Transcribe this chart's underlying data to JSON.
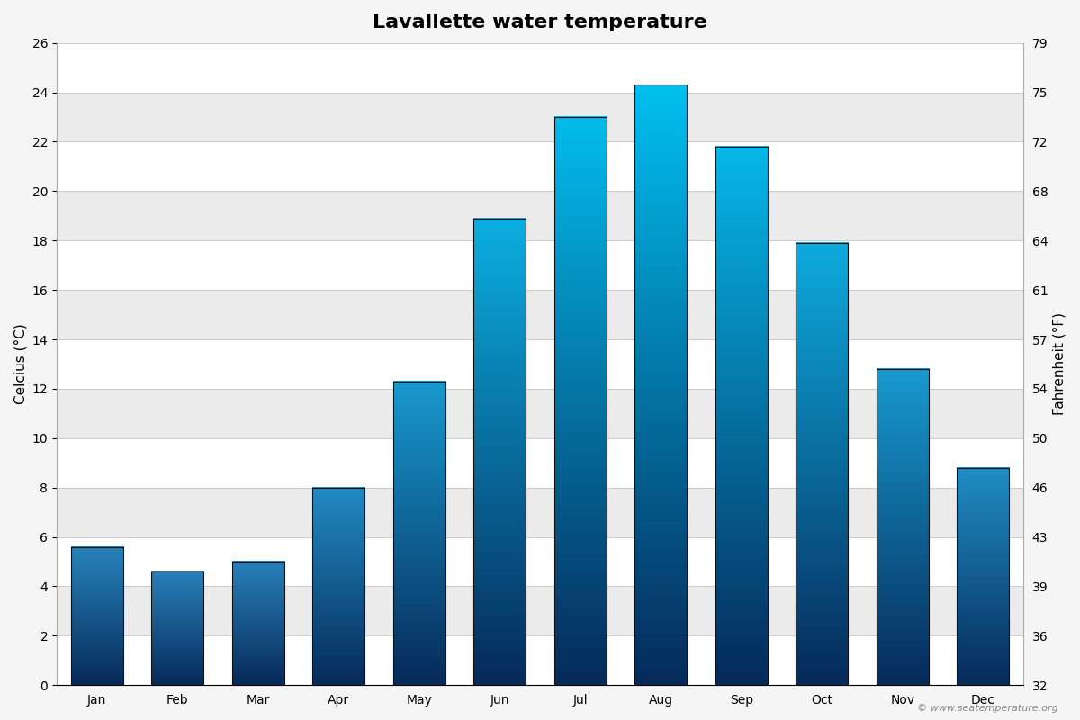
{
  "title": "Lavallette water temperature",
  "months": [
    "Jan",
    "Feb",
    "Mar",
    "Apr",
    "May",
    "Jun",
    "Jul",
    "Aug",
    "Sep",
    "Oct",
    "Nov",
    "Dec"
  ],
  "values_c": [
    5.6,
    4.6,
    5.0,
    8.0,
    12.3,
    18.9,
    23.0,
    24.3,
    21.8,
    17.9,
    12.8,
    8.8
  ],
  "ylabel_left": "Celcius (°C)",
  "ylabel_right": "Fahrenheit (°F)",
  "ylim_left": [
    0,
    26
  ],
  "yticks_left": [
    0,
    2,
    4,
    6,
    8,
    10,
    12,
    14,
    16,
    18,
    20,
    22,
    24,
    26
  ],
  "yticks_right": [
    32,
    36,
    39,
    43,
    46,
    50,
    54,
    57,
    61,
    64,
    68,
    72,
    75,
    79
  ],
  "color_bottom": "#062a5a",
  "color_cold_top": "#2980b9",
  "color_warm_top": "#00c0f0",
  "band_white": "#ffffff",
  "band_gray": "#ebebeb",
  "title_fontsize": 16,
  "axis_fontsize": 11,
  "tick_fontsize": 10,
  "watermark": "© www.seatemperature.org",
  "bar_width": 0.65
}
